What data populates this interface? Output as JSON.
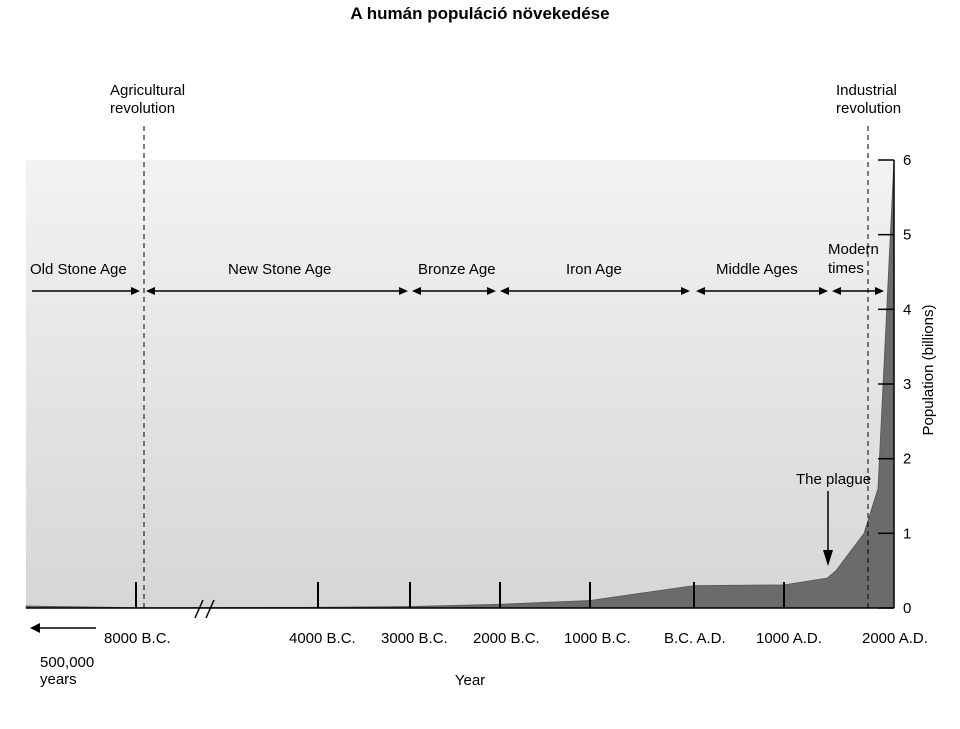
{
  "title": "A humán populáció növekedése",
  "chart_data": {
    "type": "area",
    "xlabel": "Year",
    "ylabel": "Population (billions)",
    "ylim": [
      0,
      6
    ],
    "y_ticks": [
      0,
      1,
      2,
      3,
      4,
      5,
      6
    ],
    "x_tick_labels": [
      "8000 B.C.",
      "4000 B.C.",
      "3000 B.C.",
      "2000 B.C.",
      "1000 B.C.",
      "B.C. A.D.",
      "1000 A.D.",
      "2000 A.D."
    ],
    "x_axis_note": [
      "500,000",
      "years"
    ],
    "vertical_markers": [
      {
        "label": [
          "Agricultural",
          "revolution"
        ],
        "at": "8000 B.C."
      },
      {
        "label": [
          "Industrial",
          "revolution"
        ],
        "at": "2000 A.D."
      }
    ],
    "eras": [
      "Old Stone Age",
      "New Stone Age",
      "Bronze Age",
      "Iron Age",
      "Middle Ages",
      [
        "Modern",
        "times"
      ]
    ],
    "annotation": "The plague",
    "series": [
      {
        "values": [
          {
            "x": "8000 B.C.",
            "y": 0.005
          },
          {
            "x": "4000 B.C.",
            "y": 0.01
          },
          {
            "x": "3000 B.C.",
            "y": 0.02
          },
          {
            "x": "2000 B.C.",
            "y": 0.05
          },
          {
            "x": "1000 B.C.",
            "y": 0.1
          },
          {
            "x": "B.C. A.D.",
            "y": 0.3
          },
          {
            "x": "1000 A.D.",
            "y": 0.31
          },
          {
            "x": "1350 A.D.",
            "y": 0.4
          },
          {
            "x": "1500 A.D.",
            "y": 0.5
          },
          {
            "x": "1800 A.D.",
            "y": 1.0
          },
          {
            "x": "1900 A.D.",
            "y": 1.6
          },
          {
            "x": "2000 A.D.",
            "y": 6.0
          }
        ]
      }
    ]
  }
}
